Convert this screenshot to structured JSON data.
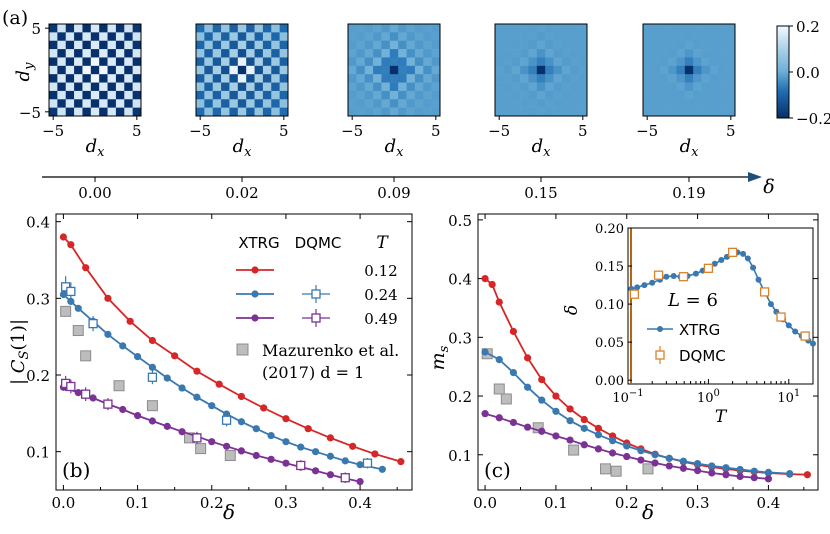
{
  "chart_data": [
    {
      "type": "heatmap",
      "panel": "(a)",
      "xlabel": "d_x",
      "ylabel": "d_y",
      "xticks": [
        "−5",
        "5"
      ],
      "yticks": [
        "5",
        "−5"
      ],
      "colorbar": {
        "range": [
          -0.2,
          0.2
        ],
        "ticks": [
          "0.2",
          "0.0",
          "−0.2"
        ]
      },
      "delta_axis": {
        "label": "δ",
        "values": [
          "0.00",
          "0.02",
          "0.09",
          "0.15",
          "0.19"
        ]
      },
      "maps": [
        {
          "delta": 0.0,
          "core": -0.2,
          "amplitude": 0.2,
          "decay": 60
        },
        {
          "delta": 0.02,
          "core": -0.2,
          "amplitude": 0.14,
          "decay": 14
        },
        {
          "delta": 0.09,
          "core": -0.2,
          "amplitude": 0.12,
          "decay": 2.2
        },
        {
          "delta": 0.15,
          "core": -0.2,
          "amplitude": 0.1,
          "decay": 1.2
        },
        {
          "delta": 0.19,
          "core": -0.2,
          "amplitude": 0.1,
          "decay": 1.0
        }
      ]
    },
    {
      "type": "line",
      "panel": "(b)",
      "xlabel": "δ",
      "ylabel": "|C_S(1)|",
      "xlim": [
        -0.01,
        0.47
      ],
      "ylim": [
        0.05,
        0.41
      ],
      "xticks": [
        "0.0",
        "0.1",
        "0.2",
        "0.3",
        "0.4"
      ],
      "yticks": [
        "0.1",
        "0.2",
        "0.3",
        "0.4"
      ],
      "legend_headers": [
        "XTRG",
        "DQMC",
        "T"
      ],
      "series": [
        {
          "name": "0.12",
          "color": "#d62728",
          "xtrg": [
            [
              0.0,
              0.38
            ],
            [
              0.01,
              0.37
            ],
            [
              0.03,
              0.34
            ],
            [
              0.06,
              0.3
            ],
            [
              0.09,
              0.27
            ],
            [
              0.12,
              0.245
            ],
            [
              0.15,
              0.225
            ],
            [
              0.18,
              0.205
            ],
            [
              0.21,
              0.188
            ],
            [
              0.24,
              0.172
            ],
            [
              0.27,
              0.157
            ],
            [
              0.3,
              0.143
            ],
            [
              0.33,
              0.13
            ],
            [
              0.36,
              0.118
            ],
            [
              0.39,
              0.107
            ],
            [
              0.42,
              0.097
            ],
            [
              0.455,
              0.087
            ]
          ],
          "dqmc": []
        },
        {
          "name": "0.24",
          "color": "#3a78b0",
          "xtrg": [
            [
              0.0,
              0.305
            ],
            [
              0.01,
              0.296
            ],
            [
              0.02,
              0.287
            ],
            [
              0.04,
              0.27
            ],
            [
              0.06,
              0.253
            ],
            [
              0.08,
              0.238
            ],
            [
              0.1,
              0.224
            ],
            [
              0.12,
              0.21
            ],
            [
              0.14,
              0.196
            ],
            [
              0.16,
              0.183
            ],
            [
              0.18,
              0.171
            ],
            [
              0.2,
              0.16
            ],
            [
              0.22,
              0.149
            ],
            [
              0.24,
              0.139
            ],
            [
              0.26,
              0.13
            ],
            [
              0.28,
              0.121
            ],
            [
              0.3,
              0.113
            ],
            [
              0.32,
              0.106
            ],
            [
              0.34,
              0.1
            ],
            [
              0.36,
              0.094
            ],
            [
              0.38,
              0.088
            ],
            [
              0.4,
              0.083
            ],
            [
              0.43,
              0.077
            ]
          ],
          "dqmc": [
            [
              0.003,
              0.315,
              0.01
            ],
            [
              0.01,
              0.309,
              0.008
            ],
            [
              0.04,
              0.267,
              0.006
            ],
            [
              0.12,
              0.197,
              0.005
            ],
            [
              0.22,
              0.141,
              0.004
            ],
            [
              0.41,
              0.085,
              0.003
            ]
          ]
        },
        {
          "name": "0.49",
          "color": "#7b3294",
          "xtrg": [
            [
              0.0,
              0.184
            ],
            [
              0.02,
              0.177
            ],
            [
              0.04,
              0.17
            ],
            [
              0.06,
              0.162
            ],
            [
              0.08,
              0.155
            ],
            [
              0.1,
              0.147
            ],
            [
              0.12,
              0.14
            ],
            [
              0.14,
              0.133
            ],
            [
              0.16,
              0.126
            ],
            [
              0.18,
              0.12
            ],
            [
              0.2,
              0.113
            ],
            [
              0.22,
              0.107
            ],
            [
              0.24,
              0.101
            ],
            [
              0.26,
              0.095
            ],
            [
              0.28,
              0.09
            ],
            [
              0.3,
              0.085
            ],
            [
              0.32,
              0.08
            ],
            [
              0.34,
              0.075
            ],
            [
              0.36,
              0.07
            ],
            [
              0.38,
              0.065
            ],
            [
              0.4,
              0.061
            ]
          ],
          "dqmc": [
            [
              0.003,
              0.189,
              0.006
            ],
            [
              0.01,
              0.185,
              0.005
            ],
            [
              0.03,
              0.175,
              0.005
            ],
            [
              0.06,
              0.162,
              0.004
            ],
            [
              0.18,
              0.118,
              0.004
            ],
            [
              0.32,
              0.082,
              0.003
            ],
            [
              0.38,
              0.066,
              0.003
            ]
          ]
        }
      ],
      "experiment": {
        "label_line1": "Mazurenko et al.",
        "label_line2": "(2017)  d = 1",
        "points": [
          [
            0.003,
            0.283
          ],
          [
            0.02,
            0.258
          ],
          [
            0.03,
            0.225
          ],
          [
            0.075,
            0.186
          ],
          [
            0.12,
            0.16
          ],
          [
            0.17,
            0.118
          ],
          [
            0.185,
            0.104
          ],
          [
            0.225,
            0.095
          ]
        ]
      },
      "legend_location": "upper right"
    },
    {
      "type": "line",
      "panel": "(c)",
      "xlabel": "δ",
      "ylabel": "m_s",
      "xlim": [
        -0.01,
        0.47
      ],
      "ylim": [
        0.04,
        0.51
      ],
      "xticks": [
        "0.0",
        "0.1",
        "0.2",
        "0.3",
        "0.4"
      ],
      "yticks": [
        "0.1",
        "0.2",
        "0.3",
        "0.4",
        "0.5"
      ],
      "series": [
        {
          "name": "0.12",
          "color": "#d62728",
          "xtrg": [
            [
              0.0,
              0.4
            ],
            [
              0.01,
              0.39
            ],
            [
              0.02,
              0.36
            ],
            [
              0.04,
              0.31
            ],
            [
              0.06,
              0.265
            ],
            [
              0.08,
              0.228
            ],
            [
              0.1,
              0.2
            ],
            [
              0.12,
              0.178
            ],
            [
              0.14,
              0.16
            ],
            [
              0.16,
              0.145
            ],
            [
              0.18,
              0.132
            ],
            [
              0.2,
              0.12
            ],
            [
              0.22,
              0.11
            ],
            [
              0.24,
              0.101
            ],
            [
              0.26,
              0.094
            ],
            [
              0.28,
              0.088
            ],
            [
              0.3,
              0.083
            ],
            [
              0.32,
              0.079
            ],
            [
              0.34,
              0.076
            ],
            [
              0.36,
              0.073
            ],
            [
              0.38,
              0.071
            ],
            [
              0.4,
              0.069
            ],
            [
              0.43,
              0.067
            ],
            [
              0.455,
              0.066
            ]
          ],
          "dqmc": []
        },
        {
          "name": "0.24",
          "color": "#3a78b0",
          "xtrg": [
            [
              0.0,
              0.275
            ],
            [
              0.02,
              0.262
            ],
            [
              0.04,
              0.24
            ],
            [
              0.06,
              0.215
            ],
            [
              0.08,
              0.193
            ],
            [
              0.1,
              0.174
            ],
            [
              0.12,
              0.158
            ],
            [
              0.14,
              0.145
            ],
            [
              0.16,
              0.134
            ],
            [
              0.18,
              0.124
            ],
            [
              0.2,
              0.115
            ],
            [
              0.22,
              0.107
            ],
            [
              0.24,
              0.1
            ],
            [
              0.26,
              0.094
            ],
            [
              0.28,
              0.089
            ],
            [
              0.3,
              0.085
            ],
            [
              0.32,
              0.081
            ],
            [
              0.34,
              0.078
            ],
            [
              0.36,
              0.075
            ],
            [
              0.38,
              0.072
            ],
            [
              0.4,
              0.07
            ],
            [
              0.43,
              0.068
            ]
          ],
          "dqmc": []
        },
        {
          "name": "0.49",
          "color": "#7b3294",
          "xtrg": [
            [
              0.0,
              0.17
            ],
            [
              0.02,
              0.163
            ],
            [
              0.04,
              0.155
            ],
            [
              0.06,
              0.147
            ],
            [
              0.08,
              0.14
            ],
            [
              0.1,
              0.132
            ],
            [
              0.12,
              0.125
            ],
            [
              0.14,
              0.117
            ],
            [
              0.16,
              0.11
            ],
            [
              0.18,
              0.103
            ],
            [
              0.2,
              0.097
            ],
            [
              0.22,
              0.091
            ],
            [
              0.24,
              0.086
            ],
            [
              0.26,
              0.081
            ],
            [
              0.28,
              0.077
            ],
            [
              0.3,
              0.073
            ],
            [
              0.32,
              0.069
            ],
            [
              0.34,
              0.066
            ],
            [
              0.36,
              0.063
            ],
            [
              0.38,
              0.061
            ],
            [
              0.4,
              0.059
            ]
          ],
          "dqmc": []
        }
      ],
      "experiment": {
        "points": [
          [
            0.003,
            0.272
          ],
          [
            0.02,
            0.212
          ],
          [
            0.03,
            0.195
          ],
          [
            0.075,
            0.146
          ],
          [
            0.125,
            0.108
          ],
          [
            0.17,
            0.076
          ],
          [
            0.185,
            0.072
          ],
          [
            0.23,
            0.076
          ]
        ]
      }
    },
    {
      "type": "line",
      "panel": "(c) inset",
      "xlabel": "T",
      "ylabel": "δ",
      "xscale": "log",
      "xlim": [
        0.1,
        20
      ],
      "ylim": [
        -0.005,
        0.2
      ],
      "xticks": [
        "10",
        "10",
        "10"
      ],
      "xtick_exponents": [
        "−1",
        "0",
        "1"
      ],
      "yticks": [
        "0.00",
        "0.05",
        "0.10",
        "0.15",
        "0.20"
      ],
      "annotation": "L = 6",
      "legend": [
        "XTRG",
        "DQMC"
      ],
      "vertical_line_x": 0.1,
      "series": [
        {
          "name": "XTRG",
          "color": "#3a78b0",
          "points": [
            [
              0.11,
              0.12
            ],
            [
              0.13,
              0.122
            ],
            [
              0.16,
              0.125
            ],
            [
              0.2,
              0.128
            ],
            [
              0.25,
              0.132
            ],
            [
              0.3,
              0.136
            ],
            [
              0.37,
              0.137
            ],
            [
              0.45,
              0.136
            ],
            [
              0.55,
              0.137
            ],
            [
              0.7,
              0.14
            ],
            [
              0.85,
              0.144
            ],
            [
              1.0,
              0.148
            ],
            [
              1.2,
              0.153
            ],
            [
              1.45,
              0.158
            ],
            [
              1.7,
              0.162
            ],
            [
              2.0,
              0.166
            ],
            [
              2.3,
              0.168
            ],
            [
              2.7,
              0.166
            ],
            [
              3.1,
              0.16
            ],
            [
              3.6,
              0.148
            ],
            [
              4.2,
              0.132
            ],
            [
              5.0,
              0.116
            ],
            [
              6.0,
              0.1
            ],
            [
              7.0,
              0.09
            ],
            [
              8.5,
              0.08
            ],
            [
              10,
              0.072
            ],
            [
              12,
              0.064
            ],
            [
              14.5,
              0.058
            ],
            [
              17.5,
              0.052
            ],
            [
              20,
              0.048
            ]
          ]
        },
        {
          "name": "DQMC",
          "color": "#d9822b",
          "points": [
            [
              0.12,
              0.113
            ],
            [
              0.24,
              0.138
            ],
            [
              0.49,
              0.136
            ],
            [
              1.0,
              0.147
            ],
            [
              2.0,
              0.168
            ],
            [
              5.0,
              0.116
            ],
            [
              8.0,
              0.083
            ],
            [
              16,
              0.058
            ]
          ]
        }
      ]
    }
  ]
}
